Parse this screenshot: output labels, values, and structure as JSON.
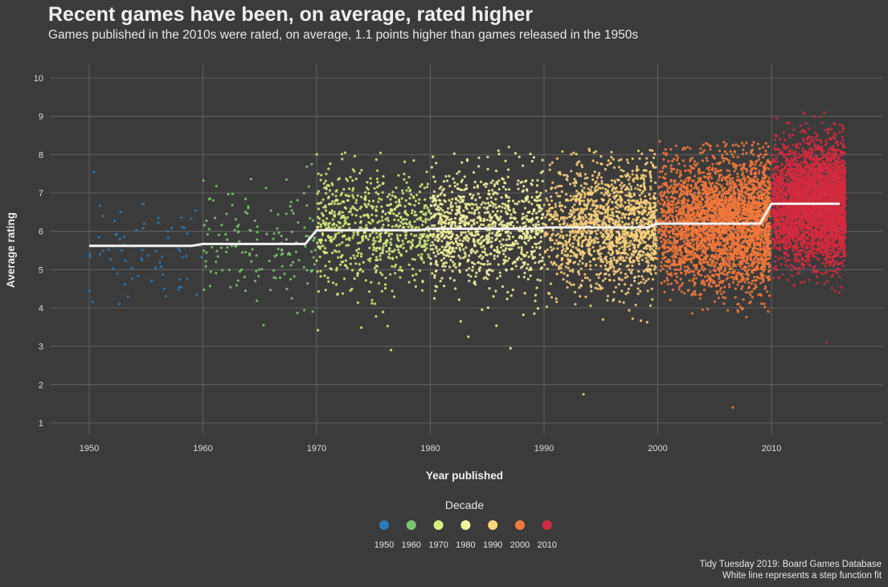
{
  "chart_data": {
    "type": "scatter",
    "title": "Recent games have been, on average, rated higher",
    "subtitle": "Games published in the 2010s were rated, on average, 1.1 points higher than games released in the 1950s",
    "xlabel": "Year published",
    "ylabel": "Average rating",
    "xlim": [
      1950,
      2016
    ],
    "ylim": [
      1,
      10
    ],
    "x_ticks": [
      "1950",
      "1960",
      "1970",
      "1980",
      "1990",
      "2000",
      "2010"
    ],
    "y_ticks": [
      "1",
      "2",
      "3",
      "4",
      "5",
      "6",
      "7",
      "8",
      "9",
      "10"
    ],
    "grid": true,
    "legend": {
      "title": "Decade",
      "placement": "bottom",
      "entries": [
        "1950",
        "1960",
        "1970",
        "1980",
        "1990",
        "2000",
        "2010"
      ]
    },
    "decade_colors": {
      "1950": "#2b7bba",
      "1960": "#7cc46f",
      "1970": "#d6ee7e",
      "1980": "#f5f5a0",
      "1990": "#fdd47e",
      "2000": "#f4783c",
      "2010": "#d22a3e"
    },
    "step_fit": {
      "color": "#f2f2f2",
      "segments": [
        {
          "decade": "1950",
          "x": [
            1950,
            1959
          ],
          "y": 5.62
        },
        {
          "decade": "1960",
          "x": [
            1960,
            1969
          ],
          "y": 5.67
        },
        {
          "decade": "1970",
          "x": [
            1970,
            1979
          ],
          "y": 6.03
        },
        {
          "decade": "1980",
          "x": [
            1980,
            1989
          ],
          "y": 6.07
        },
        {
          "decade": "1990",
          "x": [
            1990,
            1999
          ],
          "y": 6.1
        },
        {
          "decade": "2000",
          "x": [
            2000,
            2009
          ],
          "y": 6.2
        },
        {
          "decade": "2010",
          "x": [
            2010,
            2016
          ],
          "y": 6.72
        }
      ]
    },
    "point_clouds": [
      {
        "decade": "1950",
        "x_range": [
          1950,
          1959.9
        ],
        "mean": 5.62,
        "sd": 0.72,
        "count": 70,
        "min": 4.1,
        "max": 7.55
      },
      {
        "decade": "1960",
        "x_range": [
          1960,
          1969.9
        ],
        "mean": 5.67,
        "sd": 0.78,
        "count": 150,
        "min": 3.55,
        "max": 7.75
      },
      {
        "decade": "1970",
        "x_range": [
          1970,
          1979.9
        ],
        "mean": 6.03,
        "sd": 0.75,
        "count": 700,
        "min": 2.9,
        "max": 8.05
      },
      {
        "decade": "1980",
        "x_range": [
          1980,
          1989.9
        ],
        "mean": 6.07,
        "sd": 0.75,
        "count": 1000,
        "min": 2.95,
        "max": 8.2
      },
      {
        "decade": "1990",
        "x_range": [
          1990,
          1999.9
        ],
        "mean": 6.1,
        "sd": 0.8,
        "count": 1500,
        "min": 1.75,
        "max": 8.15
      },
      {
        "decade": "2000",
        "x_range": [
          2000,
          2009.9
        ],
        "mean": 6.2,
        "sd": 0.82,
        "count": 3200,
        "min": 1.4,
        "max": 8.35
      },
      {
        "decade": "2010",
        "x_range": [
          2010,
          2016.5
        ],
        "mean": 6.72,
        "sd": 0.75,
        "count": 4000,
        "min": 3.1,
        "max": 9.1
      }
    ]
  },
  "caption": {
    "line1": "Tidy Tuesday 2019: Board Games Database",
    "line2": "White line represents a step function fit"
  },
  "colors": {
    "background": "#3b3b3b",
    "grid": "#6a6a6a",
    "text": "#ececec"
  }
}
